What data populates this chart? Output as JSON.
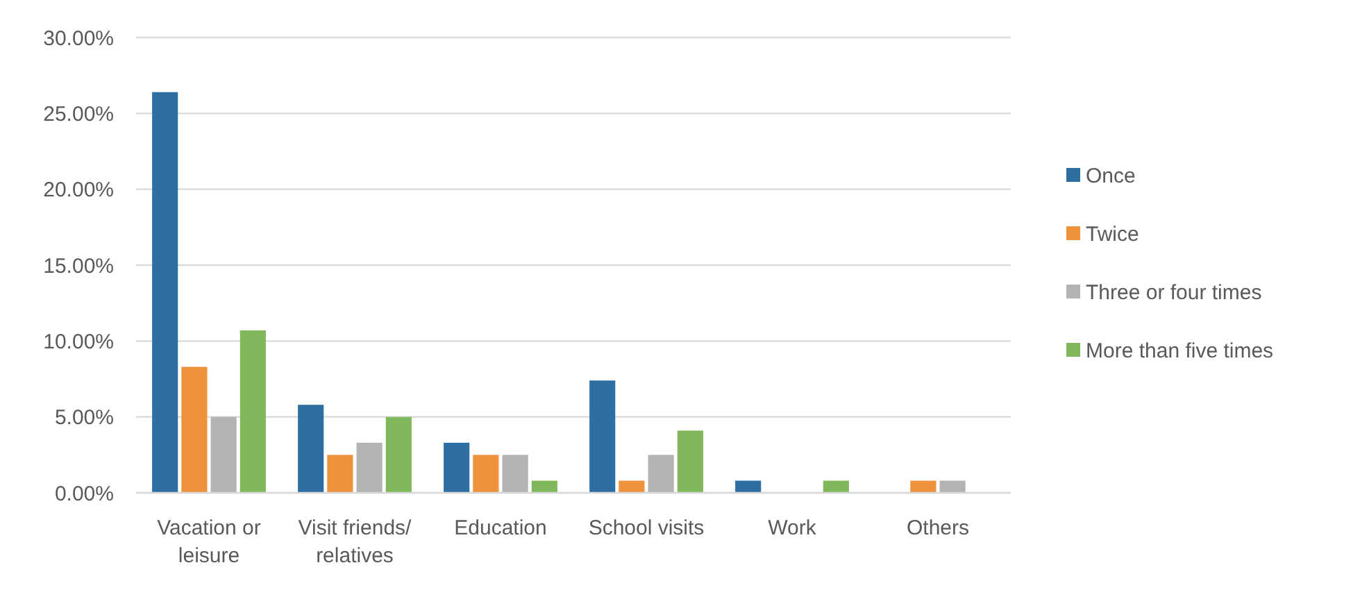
{
  "chart_data": {
    "type": "bar",
    "categories": [
      "Vacation or leisure",
      "Visit friends/ relatives",
      "Education",
      "School visits",
      "Work",
      "Others"
    ],
    "series": [
      {
        "name": "Once",
        "color": "#2e6fa3",
        "values": [
          26.4,
          5.8,
          3.3,
          7.4,
          0.8,
          0
        ]
      },
      {
        "name": "Twice",
        "color": "#f0913c",
        "values": [
          8.3,
          2.5,
          2.5,
          0.8,
          0,
          0.8
        ]
      },
      {
        "name": "Three or four times",
        "color": "#b3b3b3",
        "values": [
          5,
          3.3,
          2.5,
          2.5,
          0,
          0.8
        ]
      },
      {
        "name": "More than five times",
        "color": "#80b75a",
        "values": [
          10.7,
          5,
          0.8,
          4.1,
          0.8,
          0
        ]
      }
    ],
    "ylim": [
      0,
      30
    ],
    "yticks": [
      {
        "value": 0,
        "label": "0.00%"
      },
      {
        "value": 5,
        "label": "5.00%"
      },
      {
        "value": 10,
        "label": "10.00%"
      },
      {
        "value": 15,
        "label": "15.00%"
      },
      {
        "value": 20,
        "label": "20.00%"
      },
      {
        "value": 25,
        "label": "25.00%"
      },
      {
        "value": 30,
        "label": "30.00%"
      }
    ],
    "grid": "y",
    "legend": "right"
  }
}
